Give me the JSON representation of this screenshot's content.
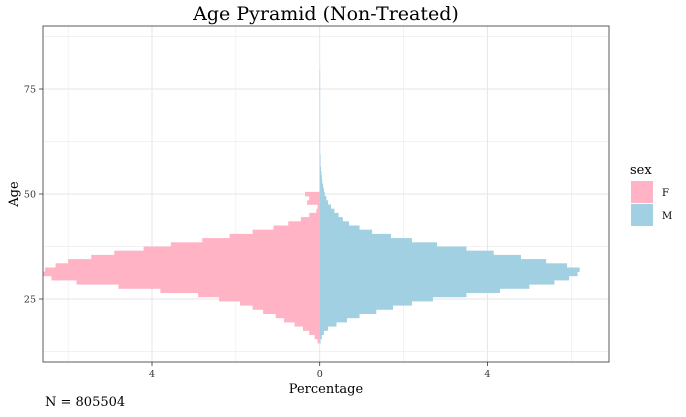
{
  "chart_data": {
    "type": "bar",
    "orientation": "horizontal-pyramid",
    "title": "Age Pyramid (Non-Treated)",
    "xlabel": "Percentage",
    "ylabel": "Age",
    "xlim": [
      -6.6,
      6.9
    ],
    "ylim": [
      10,
      90
    ],
    "x_ticks": [
      -4,
      0,
      4
    ],
    "x_tick_labels": [
      "4",
      "0",
      "4"
    ],
    "y_ticks": [
      25,
      50,
      75
    ],
    "y_tick_labels": [
      "25",
      "50",
      "75"
    ],
    "grid": true,
    "legend": {
      "title": "sex",
      "position": "right",
      "entries": [
        "F",
        "M"
      ]
    },
    "colors": {
      "F": "#FFB3C4",
      "M": "#A1D0E2"
    },
    "ages": [
      15,
      16,
      17,
      18,
      19,
      20,
      21,
      22,
      23,
      24,
      25,
      26,
      27,
      28,
      29,
      30,
      31,
      32,
      33,
      34,
      35,
      36,
      37,
      38,
      39,
      40,
      41,
      42,
      43,
      44,
      45,
      46,
      47,
      48,
      49,
      50,
      51,
      52,
      53,
      54,
      55,
      56,
      57,
      58,
      59,
      60,
      61,
      62,
      63,
      64,
      65,
      66,
      67,
      68,
      69,
      70,
      71,
      72,
      73,
      74,
      75,
      76,
      77,
      78,
      79,
      80,
      81,
      82,
      83,
      84,
      85,
      86,
      87,
      88,
      89,
      90
    ],
    "series": [
      {
        "name": "F",
        "values": [
          0.05,
          0.12,
          0.25,
          0.4,
          0.6,
          0.85,
          1.05,
          1.35,
          1.6,
          1.9,
          2.4,
          2.9,
          3.8,
          4.8,
          5.8,
          6.4,
          6.6,
          6.55,
          6.3,
          6.0,
          5.45,
          4.9,
          4.2,
          3.55,
          2.8,
          2.15,
          1.6,
          1.1,
          0.75,
          0.45,
          0.25,
          0.08,
          0.05,
          0.3,
          0.25,
          0.35,
          0,
          0,
          0,
          0,
          0,
          0,
          0,
          0,
          0,
          0,
          0,
          0,
          0,
          0,
          0,
          0,
          0,
          0,
          0,
          0,
          0,
          0,
          0,
          0,
          0,
          0,
          0,
          0,
          0,
          0,
          0,
          0,
          0,
          0,
          0,
          0,
          0,
          0,
          0,
          0
        ]
      },
      {
        "name": "M",
        "values": [
          0.02,
          0.05,
          0.1,
          0.2,
          0.4,
          0.65,
          0.95,
          1.35,
          1.75,
          2.2,
          2.7,
          3.5,
          4.3,
          5.0,
          5.6,
          5.95,
          6.15,
          6.2,
          5.9,
          5.4,
          4.8,
          4.15,
          3.5,
          2.8,
          2.2,
          1.7,
          1.25,
          0.95,
          0.7,
          0.55,
          0.45,
          0.35,
          0.27,
          0.2,
          0.16,
          0.12,
          0.1,
          0.08,
          0.06,
          0.05,
          0.04,
          0.03,
          0.02,
          0.02,
          0.02,
          0.01,
          0.01,
          0.01,
          0.01,
          0.01,
          0.01,
          0.01,
          0.01,
          0.01,
          0.01,
          0.01,
          0.01,
          0.01,
          0.01,
          0.01,
          0.01,
          0.01,
          0.01,
          0.01,
          0.01,
          0,
          0,
          0,
          0,
          0,
          0,
          0,
          0,
          0,
          0,
          0
        ]
      }
    ],
    "annotations": [
      "N = 805504"
    ]
  }
}
